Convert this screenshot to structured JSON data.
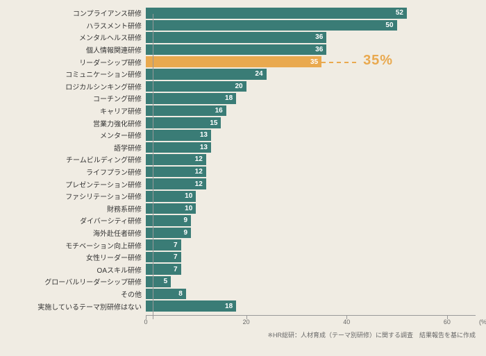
{
  "chart": {
    "type": "bar",
    "background_color": "#f0ece3",
    "bar_color": "#3a7c76",
    "highlight_color": "#e9a94f",
    "text_color": "#333333",
    "value_text_color": "#ffffff",
    "axis_color": "#999999",
    "xmax": 65,
    "xtick_step": 20,
    "xticks": [
      0,
      20,
      40,
      60
    ],
    "x_unit": "(%)",
    "label_fontsize": 10,
    "value_fontsize": 10,
    "callout_fontsize": 20,
    "rows": [
      {
        "label": "コンプライアンス研修",
        "value": 52,
        "highlight": false
      },
      {
        "label": "ハラスメント研修",
        "value": 50,
        "highlight": false
      },
      {
        "label": "メンタルヘルス研修",
        "value": 36,
        "highlight": false
      },
      {
        "label": "個人情報関連研修",
        "value": 36,
        "highlight": false
      },
      {
        "label": "リーダーシップ研修",
        "value": 35,
        "highlight": true,
        "callout": "35%"
      },
      {
        "label": "コミュニケーション研修",
        "value": 24,
        "highlight": false
      },
      {
        "label": "ロジカルシンキング研修",
        "value": 20,
        "highlight": false
      },
      {
        "label": "コーチング研修",
        "value": 18,
        "highlight": false
      },
      {
        "label": "キャリア研修",
        "value": 16,
        "highlight": false
      },
      {
        "label": "営業力強化研修",
        "value": 15,
        "highlight": false
      },
      {
        "label": "メンター研修",
        "value": 13,
        "highlight": false
      },
      {
        "label": "語学研修",
        "value": 13,
        "highlight": false
      },
      {
        "label": "チームビルディング研修",
        "value": 12,
        "highlight": false
      },
      {
        "label": "ライフプラン研修",
        "value": 12,
        "highlight": false
      },
      {
        "label": "プレゼンテーション研修",
        "value": 12,
        "highlight": false
      },
      {
        "label": "ファシリテーション研修",
        "value": 10,
        "highlight": false
      },
      {
        "label": "財務系研修",
        "value": 10,
        "highlight": false
      },
      {
        "label": "ダイバーシティ研修",
        "value": 9,
        "highlight": false
      },
      {
        "label": "海外赴任者研修",
        "value": 9,
        "highlight": false
      },
      {
        "label": "モチベーション向上研修",
        "value": 7,
        "highlight": false
      },
      {
        "label": "女性リーダー研修",
        "value": 7,
        "highlight": false
      },
      {
        "label": "OAスキル研修",
        "value": 7,
        "highlight": false
      },
      {
        "label": "グローバルリーダーシップ研修",
        "value": 5,
        "highlight": false
      },
      {
        "label": "その他",
        "value": 8,
        "highlight": false
      },
      {
        "label": "実施しているテーマ別研修はない",
        "value": 18,
        "highlight": false
      }
    ],
    "footnote": "※HR総研：人材育成（テーマ別研修）に関する調査　結果報告を基に作成"
  }
}
